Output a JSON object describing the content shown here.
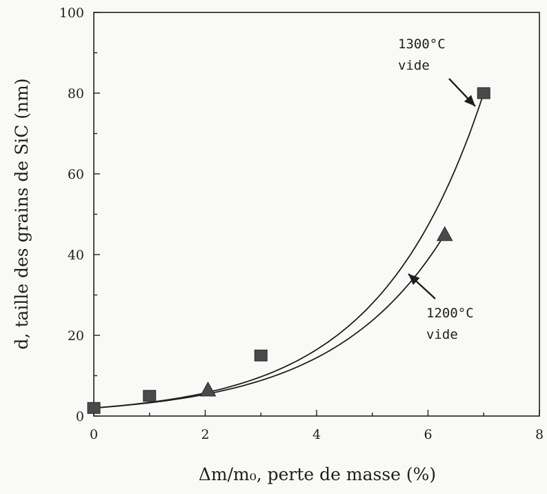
{
  "chart_data": {
    "type": "scatter",
    "title": "",
    "xlabel": "Δm/m₀, perte de masse (%)",
    "ylabel": "d, taille des grains de SiC (nm)",
    "xlim": [
      0,
      8
    ],
    "ylim": [
      0,
      100
    ],
    "xticks": [
      "0",
      "2",
      "4",
      "6",
      "8"
    ],
    "yticks": [
      "0",
      "20",
      "40",
      "60",
      "80",
      "100"
    ],
    "grid": false,
    "legend": "none",
    "series": [
      {
        "marker": "square",
        "points": [
          {
            "x": 0,
            "y": 2
          },
          {
            "x": 1,
            "y": 5
          },
          {
            "x": 3,
            "y": 15
          },
          {
            "x": 7,
            "y": 80
          }
        ]
      },
      {
        "marker": "triangle",
        "points": [
          {
            "x": 0,
            "y": 2
          },
          {
            "x": 1,
            "y": 5
          },
          {
            "x": 2.05,
            "y": 6.5
          },
          {
            "x": 6.3,
            "y": 45
          }
        ]
      }
    ],
    "annotations": [
      {
        "lines": [
          "1300°C",
          "vide"
        ],
        "target_series": 0
      },
      {
        "lines": [
          "1200°C",
          "vide"
        ],
        "target_series": 1
      }
    ]
  }
}
